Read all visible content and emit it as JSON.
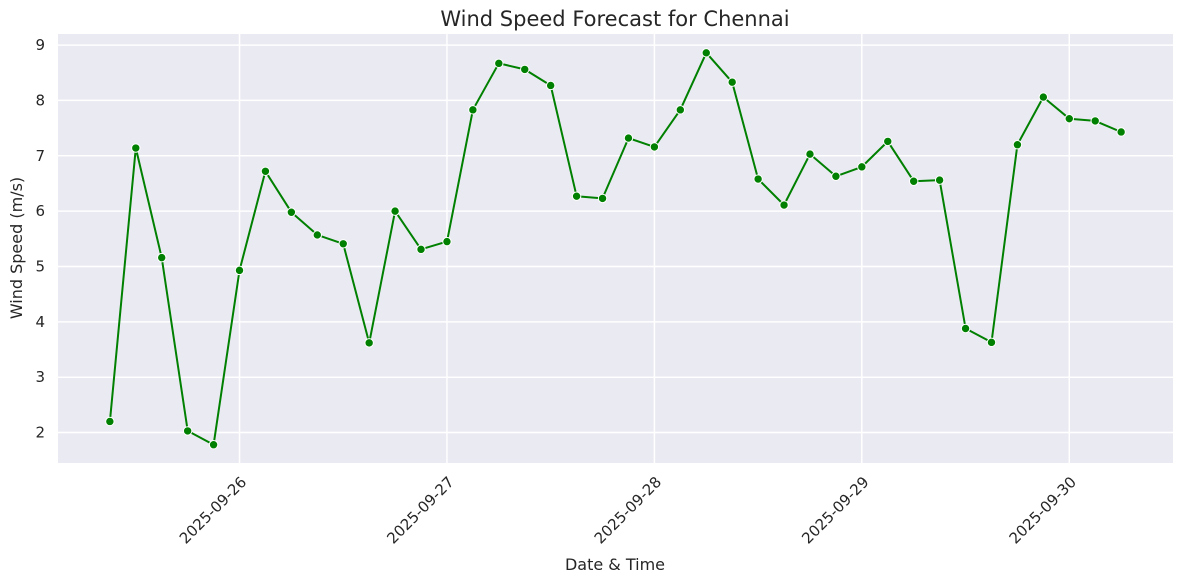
{
  "chart_data": {
    "type": "line",
    "title": "Wind Speed Forecast for Chennai",
    "xlabel": "Date & Time",
    "ylabel": "Wind Speed (m/s)",
    "x_tick_labels": [
      "2025-09-26",
      "2025-09-27",
      "2025-09-28",
      "2025-09-29",
      "2025-09-30"
    ],
    "y_ticks": [
      2,
      3,
      4,
      5,
      6,
      7,
      8,
      9
    ],
    "xlim": [
      "2025-09-25 03:00",
      "2025-09-30 12:00"
    ],
    "ylim": [
      1.45,
      9.2
    ],
    "grid": true,
    "line_color": "#008000",
    "background_color": "#EAEAF2",
    "series": [
      {
        "x": [
          "2025-09-25 09:00",
          "2025-09-25 12:00",
          "2025-09-25 15:00",
          "2025-09-25 18:00",
          "2025-09-25 21:00",
          "2025-09-26 00:00",
          "2025-09-26 03:00",
          "2025-09-26 06:00",
          "2025-09-26 09:00",
          "2025-09-26 12:00",
          "2025-09-26 15:00",
          "2025-09-26 18:00",
          "2025-09-26 21:00",
          "2025-09-27 00:00",
          "2025-09-27 03:00",
          "2025-09-27 06:00",
          "2025-09-27 09:00",
          "2025-09-27 12:00",
          "2025-09-27 15:00",
          "2025-09-27 18:00",
          "2025-09-27 21:00",
          "2025-09-28 00:00",
          "2025-09-28 03:00",
          "2025-09-28 06:00",
          "2025-09-28 09:00",
          "2025-09-28 12:00",
          "2025-09-28 15:00",
          "2025-09-28 18:00",
          "2025-09-28 21:00",
          "2025-09-29 00:00",
          "2025-09-29 03:00",
          "2025-09-29 06:00",
          "2025-09-29 09:00",
          "2025-09-29 12:00",
          "2025-09-29 15:00",
          "2025-09-29 18:00",
          "2025-09-29 21:00",
          "2025-09-30 00:00",
          "2025-09-30 03:00",
          "2025-09-30 06:00"
        ],
        "values": [
          2.2,
          7.14,
          5.16,
          2.03,
          1.78,
          4.93,
          6.72,
          5.98,
          5.57,
          5.41,
          3.62,
          6.0,
          5.31,
          5.45,
          7.83,
          8.67,
          8.56,
          8.27,
          6.27,
          6.23,
          7.32,
          7.16,
          7.83,
          8.86,
          8.33,
          6.58,
          6.11,
          7.03,
          6.63,
          6.8,
          7.26,
          6.54,
          6.56,
          3.88,
          3.63,
          7.2,
          8.06,
          7.67,
          7.63,
          7.43
        ]
      }
    ]
  }
}
